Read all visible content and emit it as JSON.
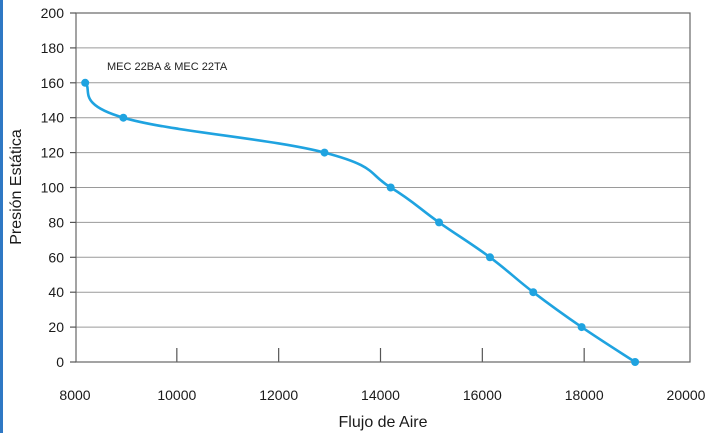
{
  "chart_data": {
    "type": "line",
    "xlabel": "Flujo de Aire",
    "ylabel": "Presión Estática",
    "xlim": [
      8000,
      20000
    ],
    "ylim": [
      0,
      200
    ],
    "x_ticks": [
      "8000",
      "10000",
      "12000",
      "14000",
      "16000",
      "18000",
      "20000"
    ],
    "y_ticks": [
      "0",
      "20",
      "40",
      "60",
      "80",
      "100",
      "120",
      "140",
      "160",
      "180",
      "200"
    ],
    "grid": "horizontal",
    "annotation": "MEC 22BA & MEC 22TA",
    "series": [
      {
        "color": "#1fa3e0",
        "points": [
          {
            "x": 8200,
            "y": 160
          },
          {
            "x": 8950,
            "y": 140
          },
          {
            "x": 12900,
            "y": 120
          },
          {
            "x": 14200,
            "y": 100
          },
          {
            "x": 15150,
            "y": 80
          },
          {
            "x": 16150,
            "y": 60
          },
          {
            "x": 17000,
            "y": 40
          },
          {
            "x": 17950,
            "y": 20
          },
          {
            "x": 19000,
            "y": 0
          }
        ]
      }
    ]
  }
}
